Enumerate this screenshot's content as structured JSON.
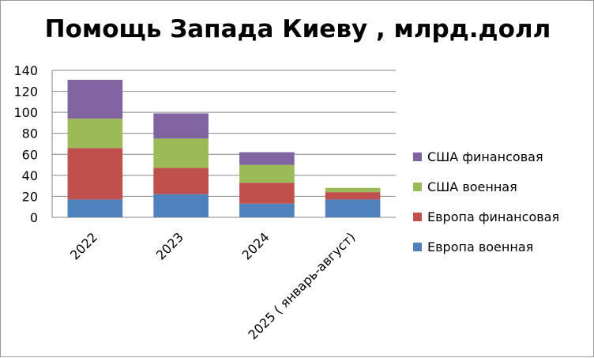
{
  "chart_data": {
    "type": "bar",
    "stacked": true,
    "title": "Помощь Запада Киеву , млрд.долл",
    "categories": [
      "2022",
      "2023",
      "2024",
      "2025 ( январь-август)"
    ],
    "series": [
      {
        "name": "Европа военная",
        "color": "#4F81BD",
        "values": [
          17,
          22,
          13,
          17
        ]
      },
      {
        "name": "Европа финансовая",
        "color": "#C0504D",
        "values": [
          49,
          25,
          20,
          7
        ]
      },
      {
        "name": "США  военная",
        "color": "#9BBB59",
        "values": [
          28,
          28,
          17,
          4
        ]
      },
      {
        "name": "США  финансовая",
        "color": "#8064A2",
        "values": [
          37,
          24,
          12,
          0
        ]
      }
    ],
    "ylim": [
      0,
      140
    ],
    "yticks": [
      0,
      20,
      40,
      60,
      80,
      100,
      120,
      140
    ],
    "grid": true,
    "legend_position": "right"
  }
}
